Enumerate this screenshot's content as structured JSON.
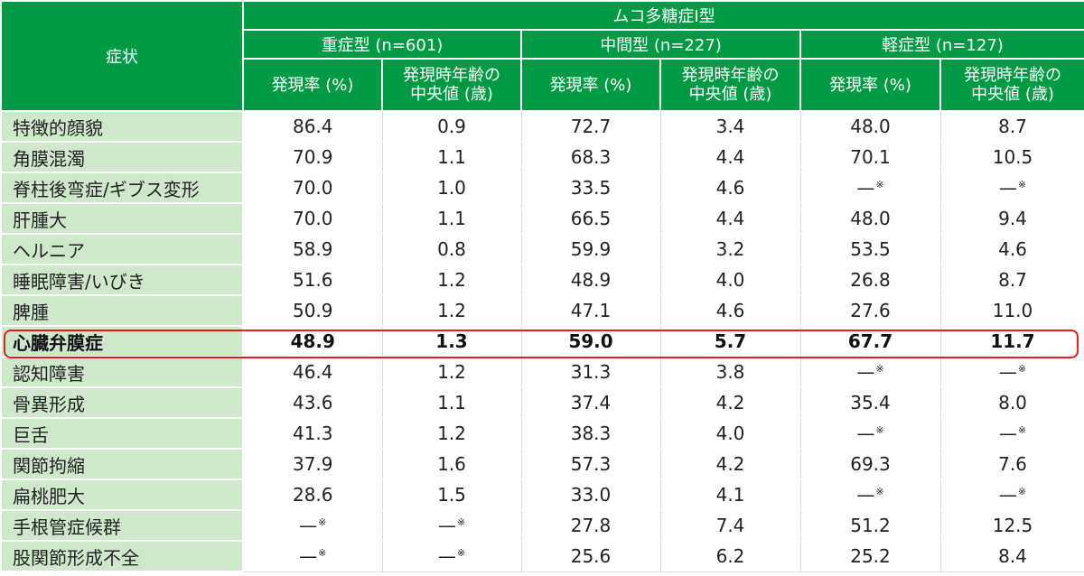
{
  "header": {
    "symptom_label": "症状",
    "group_title": "ムコ多糖症Ⅰ型",
    "groups": [
      {
        "label": "重症型 (n=601)"
      },
      {
        "label": "中間型 (n=227)"
      },
      {
        "label": "軽症型 (n=127)"
      }
    ],
    "sub_rate": "発現率 (%)",
    "sub_age_line1": "発現時年齢の",
    "sub_age_line2": "中央値 (歳)"
  },
  "rows": [
    {
      "name": "特徴的顔貌",
      "v": [
        "86.4",
        "0.9",
        "72.7",
        "3.4",
        "48.0",
        "8.7"
      ]
    },
    {
      "name": "角膜混濁",
      "v": [
        "70.9",
        "1.1",
        "68.3",
        "4.4",
        "70.1",
        "10.5"
      ]
    },
    {
      "name": "脊柱後弯症/ギブス変形",
      "v": [
        "70.0",
        "1.0",
        "33.5",
        "4.6",
        "—",
        "—"
      ],
      "note": [
        false,
        false,
        false,
        false,
        true,
        true
      ]
    },
    {
      "name": "肝腫大",
      "v": [
        "70.0",
        "1.1",
        "66.5",
        "4.4",
        "48.0",
        "9.4"
      ]
    },
    {
      "name": "ヘルニア",
      "v": [
        "58.9",
        "0.8",
        "59.9",
        "3.2",
        "53.5",
        "4.6"
      ]
    },
    {
      "name": "睡眠障害/いびき",
      "v": [
        "51.6",
        "1.2",
        "48.9",
        "4.0",
        "26.8",
        "8.7"
      ]
    },
    {
      "name": "脾腫",
      "v": [
        "50.9",
        "1.2",
        "47.1",
        "4.6",
        "27.6",
        "11.0"
      ]
    },
    {
      "name": "心臓弁膜症",
      "v": [
        "48.9",
        "1.3",
        "59.0",
        "5.7",
        "67.7",
        "11.7"
      ],
      "highlight": true
    },
    {
      "name": "認知障害",
      "v": [
        "46.4",
        "1.2",
        "31.3",
        "3.8",
        "—",
        "—"
      ],
      "note": [
        false,
        false,
        false,
        false,
        true,
        true
      ]
    },
    {
      "name": "骨異形成",
      "v": [
        "43.6",
        "1.1",
        "37.4",
        "4.2",
        "35.4",
        "8.0"
      ]
    },
    {
      "name": "巨舌",
      "v": [
        "41.3",
        "1.2",
        "38.3",
        "4.0",
        "—",
        "—"
      ],
      "note": [
        false,
        false,
        false,
        false,
        true,
        true
      ]
    },
    {
      "name": "関節拘縮",
      "v": [
        "37.9",
        "1.6",
        "57.3",
        "4.2",
        "69.3",
        "7.6"
      ]
    },
    {
      "name": "扁桃肥大",
      "v": [
        "28.6",
        "1.5",
        "33.0",
        "4.1",
        "—",
        "—"
      ],
      "note": [
        false,
        false,
        false,
        false,
        true,
        true
      ]
    },
    {
      "name": "手根管症候群",
      "v": [
        "—",
        "—",
        "27.8",
        "7.4",
        "51.2",
        "12.5"
      ],
      "note": [
        true,
        true,
        false,
        false,
        false,
        false
      ]
    },
    {
      "name": "股関節形成不全",
      "v": [
        "—",
        "—",
        "25.6",
        "6.2",
        "25.2",
        "8.4"
      ],
      "note": [
        true,
        true,
        false,
        false,
        false,
        false
      ]
    }
  ],
  "footnote_mark": "※",
  "colors": {
    "header": "#009a44",
    "row_label": "#cfe8cc",
    "highlight_border": "#d9241b"
  }
}
